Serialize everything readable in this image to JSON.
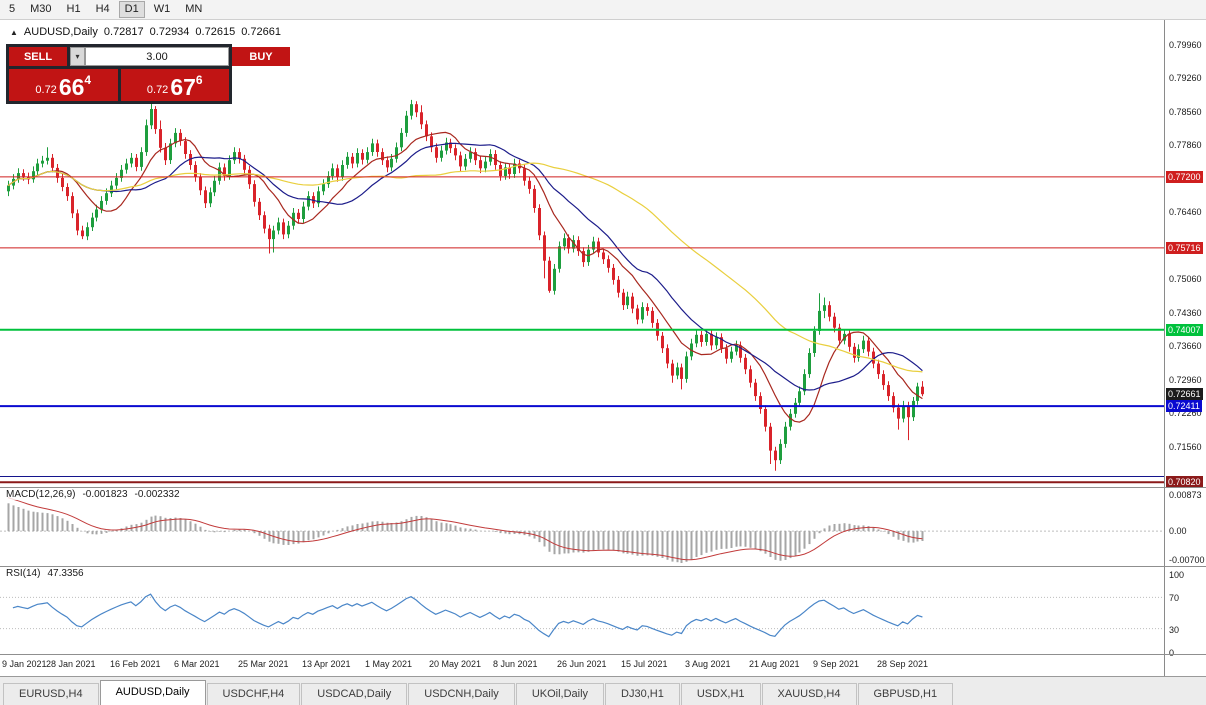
{
  "toolbar": {
    "timeframes": [
      "5",
      "M30",
      "H1",
      "H4",
      "D1",
      "W1",
      "MN"
    ],
    "active_timeframe": "D1"
  },
  "chart_header": {
    "symbol": "AUDUSD,Daily",
    "open": "0.72817",
    "high": "0.72934",
    "low": "0.72615",
    "close": "0.72661"
  },
  "trade_panel": {
    "sell_label": "SELL",
    "buy_label": "BUY",
    "volume": "3.00",
    "sell_price_prefix": "0.72",
    "sell_price_big": "66",
    "sell_price_sup": "4",
    "buy_price_prefix": "0.72",
    "buy_price_big": "67",
    "buy_price_sup": "6"
  },
  "macd_panel": {
    "name": "MACD(12,26,9)",
    "main_value": "-0.001823",
    "signal_value": "-0.002332",
    "axis_labels": [
      "0.00873",
      "0.00",
      "-0.00700"
    ]
  },
  "rsi_panel": {
    "name": "RSI(14)",
    "value": "47.3356",
    "axis_labels": [
      "100",
      "70",
      "30",
      "0"
    ]
  },
  "tabs": [
    "EURUSD,H4",
    "AUDUSD,Daily",
    "USDCHF,H4",
    "USDCAD,Daily",
    "USDCNH,Daily",
    "UKOil,Daily",
    "DJ30,H1",
    "USDX,H1",
    "XAUUSD,H4",
    "GBPUSD,H1"
  ],
  "active_tab": "AUDUSD,Daily",
  "chart_data": {
    "type": "candlestick",
    "title": "AUDUSD,Daily",
    "price_range": {
      "max": 0.8048,
      "min": 0.7072
    },
    "price_axis_ticks": [
      0.7996,
      0.7926,
      0.7856,
      0.7786,
      0.7716,
      0.7646,
      0.7576,
      0.7506,
      0.7436,
      0.7366,
      0.7296,
      0.7226,
      0.7156,
      0.7086
    ],
    "x_labels": [
      {
        "i": 0,
        "t": "9 Jan 2021"
      },
      {
        "i": 13,
        "t": "28 Jan 2021"
      },
      {
        "i": 26,
        "t": "16 Feb 2021"
      },
      {
        "i": 39,
        "t": "6 Mar 2021"
      },
      {
        "i": 52,
        "t": "25 Mar 2021"
      },
      {
        "i": 65,
        "t": "13 Apr 2021"
      },
      {
        "i": 78,
        "t": "1 May 2021"
      },
      {
        "i": 91,
        "t": "20 May 2021"
      },
      {
        "i": 104,
        "t": "8 Jun 2021"
      },
      {
        "i": 117,
        "t": "26 Jun 2021"
      },
      {
        "i": 130,
        "t": "15 Jul 2021"
      },
      {
        "i": 143,
        "t": "3 Aug 2021"
      },
      {
        "i": 156,
        "t": "21 Aug 2021"
      },
      {
        "i": 169,
        "t": "9 Sep 2021"
      },
      {
        "i": 182,
        "t": "28 Sep 2021"
      }
    ],
    "hlines": [
      {
        "value": 0.772,
        "label": "0.77200",
        "color": "#cf1f1f",
        "width": 1
      },
      {
        "value": 0.75716,
        "label": "0.75716",
        "color": "#cf1f1f",
        "width": 1
      },
      {
        "value": 0.74007,
        "label": "0.74007",
        "color": "#00c13c",
        "width": 2
      },
      {
        "value": 0.72411,
        "label": "0.72411",
        "color": "#0a0ad0",
        "width": 2
      },
      {
        "value": 0.7094,
        "label": null,
        "color": "#14148c",
        "width": 1
      },
      {
        "value": 0.7082,
        "label": "0.70820",
        "color": "#8b1a1a",
        "width": 2
      }
    ],
    "current_price": {
      "value": 0.72661,
      "label": "0.72661",
      "color": "#1c1c1c"
    },
    "moving_averages": [
      {
        "period": 10,
        "color": "#a8281f"
      },
      {
        "period": 20,
        "color": "#1c1c8a"
      },
      {
        "period": 50,
        "color": "#e9cf3e"
      }
    ],
    "macd": {
      "fast": 12,
      "slow": 26,
      "signal": 9,
      "histogram_color": "#a6a6a6",
      "signal_color": "#c23b3b",
      "range": {
        "max": 0.0105,
        "min": -0.0085
      }
    },
    "rsi": {
      "period": 14,
      "color": "#4a86c8",
      "levels": [
        70,
        30
      ]
    },
    "colors": {
      "up": "#1e9e3e",
      "down": "#d9232a"
    },
    "candles": [
      [
        0.769,
        0.7712,
        0.768,
        0.7702
      ],
      [
        0.7702,
        0.7726,
        0.7694,
        0.7716
      ],
      [
        0.7716,
        0.7738,
        0.7708,
        0.7728
      ],
      [
        0.7728,
        0.7736,
        0.7712,
        0.7721
      ],
      [
        0.7721,
        0.7729,
        0.7705,
        0.7715
      ],
      [
        0.7715,
        0.7742,
        0.7708,
        0.7732
      ],
      [
        0.7732,
        0.7758,
        0.7724,
        0.7748
      ],
      [
        0.7748,
        0.7764,
        0.774,
        0.7754
      ],
      [
        0.7754,
        0.7782,
        0.7746,
        0.776
      ],
      [
        0.776,
        0.7768,
        0.773,
        0.7739
      ],
      [
        0.7739,
        0.7747,
        0.7708,
        0.7718
      ],
      [
        0.7718,
        0.7728,
        0.769,
        0.7699
      ],
      [
        0.7699,
        0.7707,
        0.767,
        0.768
      ],
      [
        0.768,
        0.7688,
        0.7634,
        0.7644
      ],
      [
        0.7644,
        0.7652,
        0.7598,
        0.7608
      ],
      [
        0.7608,
        0.7618,
        0.759,
        0.7596
      ],
      [
        0.7596,
        0.7625,
        0.7588,
        0.7615
      ],
      [
        0.7615,
        0.7645,
        0.7607,
        0.7635
      ],
      [
        0.7635,
        0.7662,
        0.7627,
        0.7652
      ],
      [
        0.7652,
        0.768,
        0.7644,
        0.767
      ],
      [
        0.767,
        0.7696,
        0.7662,
        0.7686
      ],
      [
        0.7686,
        0.7712,
        0.7678,
        0.7702
      ],
      [
        0.7702,
        0.7728,
        0.7694,
        0.7718
      ],
      [
        0.7718,
        0.7745,
        0.771,
        0.7735
      ],
      [
        0.7735,
        0.7758,
        0.7727,
        0.7748
      ],
      [
        0.7748,
        0.777,
        0.774,
        0.776
      ],
      [
        0.776,
        0.7768,
        0.7732,
        0.7741
      ],
      [
        0.7741,
        0.7782,
        0.7733,
        0.7772
      ],
      [
        0.7772,
        0.784,
        0.7764,
        0.7828
      ],
      [
        0.7828,
        0.7874,
        0.782,
        0.7862
      ],
      [
        0.7862,
        0.7868,
        0.781,
        0.782
      ],
      [
        0.782,
        0.7838,
        0.7771,
        0.7781
      ],
      [
        0.7781,
        0.7791,
        0.7745,
        0.7755
      ],
      [
        0.7755,
        0.78,
        0.7747,
        0.779
      ],
      [
        0.779,
        0.7822,
        0.7782,
        0.7812
      ],
      [
        0.7812,
        0.782,
        0.7785,
        0.7795
      ],
      [
        0.7795,
        0.7803,
        0.7758,
        0.7768
      ],
      [
        0.7768,
        0.7776,
        0.7735,
        0.7745
      ],
      [
        0.7745,
        0.7753,
        0.771,
        0.772
      ],
      [
        0.772,
        0.7728,
        0.7682,
        0.7692
      ],
      [
        0.7692,
        0.77,
        0.7655,
        0.7665
      ],
      [
        0.7665,
        0.7698,
        0.7657,
        0.7688
      ],
      [
        0.7688,
        0.7722,
        0.768,
        0.7712
      ],
      [
        0.7712,
        0.775,
        0.7704,
        0.774
      ],
      [
        0.774,
        0.7748,
        0.7712,
        0.7722
      ],
      [
        0.7722,
        0.7765,
        0.7714,
        0.7755
      ],
      [
        0.7755,
        0.7782,
        0.7747,
        0.7772
      ],
      [
        0.7772,
        0.778,
        0.7748,
        0.7758
      ],
      [
        0.7758,
        0.7766,
        0.7725,
        0.7735
      ],
      [
        0.7735,
        0.7743,
        0.7695,
        0.7705
      ],
      [
        0.7705,
        0.7713,
        0.7658,
        0.7668
      ],
      [
        0.7668,
        0.7676,
        0.763,
        0.764
      ],
      [
        0.764,
        0.7648,
        0.7602,
        0.7612
      ],
      [
        0.7612,
        0.762,
        0.756,
        0.759
      ],
      [
        0.759,
        0.7618,
        0.7562,
        0.7608
      ],
      [
        0.7608,
        0.7635,
        0.76,
        0.7625
      ],
      [
        0.7625,
        0.7633,
        0.759,
        0.76
      ],
      [
        0.76,
        0.7628,
        0.7592,
        0.7618
      ],
      [
        0.7618,
        0.7655,
        0.761,
        0.7645
      ],
      [
        0.7645,
        0.7653,
        0.7622,
        0.7632
      ],
      [
        0.7632,
        0.7668,
        0.7624,
        0.7658
      ],
      [
        0.7658,
        0.769,
        0.765,
        0.768
      ],
      [
        0.768,
        0.7688,
        0.7655,
        0.7665
      ],
      [
        0.7665,
        0.77,
        0.7657,
        0.769
      ],
      [
        0.769,
        0.7715,
        0.7682,
        0.7705
      ],
      [
        0.7705,
        0.7732,
        0.7697,
        0.7722
      ],
      [
        0.7722,
        0.7748,
        0.7714,
        0.7738
      ],
      [
        0.7738,
        0.7746,
        0.771,
        0.772
      ],
      [
        0.772,
        0.7755,
        0.7712,
        0.7745
      ],
      [
        0.7745,
        0.7772,
        0.7737,
        0.7762
      ],
      [
        0.7762,
        0.777,
        0.7738,
        0.7748
      ],
      [
        0.7748,
        0.778,
        0.774,
        0.777
      ],
      [
        0.777,
        0.7778,
        0.7746,
        0.7756
      ],
      [
        0.7756,
        0.7782,
        0.7748,
        0.7772
      ],
      [
        0.7772,
        0.78,
        0.7764,
        0.779
      ],
      [
        0.779,
        0.7798,
        0.7762,
        0.7772
      ],
      [
        0.7772,
        0.778,
        0.7745,
        0.7755
      ],
      [
        0.7755,
        0.7763,
        0.773,
        0.774
      ],
      [
        0.774,
        0.7768,
        0.7732,
        0.7758
      ],
      [
        0.7758,
        0.7792,
        0.775,
        0.7782
      ],
      [
        0.7782,
        0.7822,
        0.7774,
        0.7812
      ],
      [
        0.7812,
        0.7858,
        0.7804,
        0.7848
      ],
      [
        0.7848,
        0.7881,
        0.784,
        0.7872
      ],
      [
        0.7872,
        0.7878,
        0.7845,
        0.7855
      ],
      [
        0.7855,
        0.787,
        0.782,
        0.783
      ],
      [
        0.783,
        0.7838,
        0.7795,
        0.7805
      ],
      [
        0.7805,
        0.7813,
        0.7772,
        0.7782
      ],
      [
        0.7782,
        0.779,
        0.775,
        0.776
      ],
      [
        0.776,
        0.7785,
        0.7752,
        0.7775
      ],
      [
        0.7775,
        0.7802,
        0.7767,
        0.7792
      ],
      [
        0.7792,
        0.78,
        0.777,
        0.778
      ],
      [
        0.778,
        0.7788,
        0.7755,
        0.7765
      ],
      [
        0.7765,
        0.7773,
        0.7732,
        0.7742
      ],
      [
        0.7742,
        0.7768,
        0.7734,
        0.7758
      ],
      [
        0.7758,
        0.7782,
        0.775,
        0.7772
      ],
      [
        0.7772,
        0.778,
        0.7745,
        0.7755
      ],
      [
        0.7755,
        0.7763,
        0.7728,
        0.7738
      ],
      [
        0.7738,
        0.7762,
        0.773,
        0.7752
      ],
      [
        0.7752,
        0.7778,
        0.7744,
        0.7768
      ],
      [
        0.7768,
        0.7776,
        0.7735,
        0.7745
      ],
      [
        0.7745,
        0.7753,
        0.7712,
        0.7722
      ],
      [
        0.7722,
        0.775,
        0.7714,
        0.774
      ],
      [
        0.774,
        0.7748,
        0.7716,
        0.7726
      ],
      [
        0.7726,
        0.7758,
        0.7718,
        0.7748
      ],
      [
        0.7748,
        0.7756,
        0.7728,
        0.7738
      ],
      [
        0.7738,
        0.7746,
        0.7702,
        0.7712
      ],
      [
        0.7712,
        0.772,
        0.7685,
        0.7695
      ],
      [
        0.7695,
        0.7703,
        0.7645,
        0.7655
      ],
      [
        0.7655,
        0.7663,
        0.7588,
        0.7598
      ],
      [
        0.7598,
        0.7606,
        0.7508,
        0.7545
      ],
      [
        0.7545,
        0.7553,
        0.7478,
        0.7482
      ],
      [
        0.7482,
        0.7538,
        0.7474,
        0.7528
      ],
      [
        0.7528,
        0.7585,
        0.752,
        0.7575
      ],
      [
        0.7575,
        0.7602,
        0.7567,
        0.7592
      ],
      [
        0.7592,
        0.76,
        0.756,
        0.757
      ],
      [
        0.757,
        0.7598,
        0.7562,
        0.7588
      ],
      [
        0.7588,
        0.7596,
        0.7555,
        0.7565
      ],
      [
        0.7565,
        0.7573,
        0.7532,
        0.7542
      ],
      [
        0.7542,
        0.7578,
        0.7534,
        0.7568
      ],
      [
        0.7568,
        0.7595,
        0.756,
        0.7585
      ],
      [
        0.7585,
        0.7593,
        0.7552,
        0.7562
      ],
      [
        0.7562,
        0.757,
        0.7538,
        0.7548
      ],
      [
        0.7548,
        0.7556,
        0.752,
        0.753
      ],
      [
        0.753,
        0.7538,
        0.7495,
        0.7505
      ],
      [
        0.7505,
        0.7513,
        0.7468,
        0.7478
      ],
      [
        0.7478,
        0.7486,
        0.7442,
        0.7452
      ],
      [
        0.7452,
        0.748,
        0.7444,
        0.747
      ],
      [
        0.747,
        0.7478,
        0.7435,
        0.7445
      ],
      [
        0.7445,
        0.7453,
        0.7412,
        0.7422
      ],
      [
        0.7422,
        0.7458,
        0.7414,
        0.7448
      ],
      [
        0.7448,
        0.7456,
        0.743,
        0.744
      ],
      [
        0.744,
        0.7448,
        0.7405,
        0.7415
      ],
      [
        0.7415,
        0.7423,
        0.7378,
        0.7388
      ],
      [
        0.7388,
        0.7396,
        0.7352,
        0.7362
      ],
      [
        0.7362,
        0.737,
        0.732,
        0.733
      ],
      [
        0.733,
        0.7338,
        0.729,
        0.7305
      ],
      [
        0.7305,
        0.7332,
        0.7297,
        0.7322
      ],
      [
        0.7322,
        0.733,
        0.7276,
        0.7298
      ],
      [
        0.7298,
        0.7355,
        0.729,
        0.7345
      ],
      [
        0.7345,
        0.7382,
        0.7337,
        0.7372
      ],
      [
        0.7372,
        0.74,
        0.7364,
        0.739
      ],
      [
        0.739,
        0.7398,
        0.7365,
        0.7375
      ],
      [
        0.7375,
        0.7402,
        0.7367,
        0.7392
      ],
      [
        0.7392,
        0.74,
        0.7358,
        0.7368
      ],
      [
        0.7368,
        0.7395,
        0.736,
        0.7385
      ],
      [
        0.7385,
        0.7393,
        0.7352,
        0.7362
      ],
      [
        0.7362,
        0.737,
        0.733,
        0.734
      ],
      [
        0.734,
        0.7365,
        0.7332,
        0.7355
      ],
      [
        0.7355,
        0.7378,
        0.7347,
        0.7368
      ],
      [
        0.7368,
        0.7376,
        0.7332,
        0.7342
      ],
      [
        0.7342,
        0.735,
        0.7308,
        0.7318
      ],
      [
        0.7318,
        0.7326,
        0.728,
        0.729
      ],
      [
        0.729,
        0.7298,
        0.7252,
        0.7262
      ],
      [
        0.7262,
        0.727,
        0.7225,
        0.7235
      ],
      [
        0.7235,
        0.7243,
        0.7188,
        0.7198
      ],
      [
        0.7198,
        0.7206,
        0.712,
        0.7148
      ],
      [
        0.7148,
        0.7156,
        0.7106,
        0.7128
      ],
      [
        0.7128,
        0.7172,
        0.712,
        0.7162
      ],
      [
        0.7162,
        0.7208,
        0.7154,
        0.7198
      ],
      [
        0.7198,
        0.7235,
        0.719,
        0.7225
      ],
      [
        0.7225,
        0.7258,
        0.7217,
        0.7248
      ],
      [
        0.7248,
        0.7282,
        0.724,
        0.7272
      ],
      [
        0.7272,
        0.7318,
        0.7264,
        0.7308
      ],
      [
        0.7308,
        0.7362,
        0.73,
        0.7352
      ],
      [
        0.7352,
        0.7408,
        0.7344,
        0.7398
      ],
      [
        0.7398,
        0.7477,
        0.739,
        0.744
      ],
      [
        0.744,
        0.7468,
        0.7425,
        0.7452
      ],
      [
        0.7452,
        0.746,
        0.7418,
        0.7428
      ],
      [
        0.7428,
        0.7436,
        0.7395,
        0.7405
      ],
      [
        0.7405,
        0.7413,
        0.7368,
        0.7378
      ],
      [
        0.7378,
        0.7402,
        0.737,
        0.7392
      ],
      [
        0.7392,
        0.74,
        0.7355,
        0.7365
      ],
      [
        0.7365,
        0.7373,
        0.7332,
        0.7342
      ],
      [
        0.7342,
        0.737,
        0.7334,
        0.736
      ],
      [
        0.736,
        0.7388,
        0.7352,
        0.7378
      ],
      [
        0.7378,
        0.7386,
        0.7345,
        0.7355
      ],
      [
        0.7355,
        0.7363,
        0.732,
        0.733
      ],
      [
        0.733,
        0.7338,
        0.7298,
        0.7308
      ],
      [
        0.7308,
        0.7316,
        0.7275,
        0.7285
      ],
      [
        0.7285,
        0.7293,
        0.7252,
        0.7262
      ],
      [
        0.7262,
        0.727,
        0.7228,
        0.7238
      ],
      [
        0.7238,
        0.7246,
        0.7192,
        0.7215
      ],
      [
        0.7215,
        0.7252,
        0.7207,
        0.7242
      ],
      [
        0.7242,
        0.725,
        0.717,
        0.7218
      ],
      [
        0.7218,
        0.726,
        0.721,
        0.7252
      ],
      [
        0.7252,
        0.729,
        0.7244,
        0.7282
      ],
      [
        0.72817,
        0.72934,
        0.72615,
        0.72661
      ]
    ]
  }
}
